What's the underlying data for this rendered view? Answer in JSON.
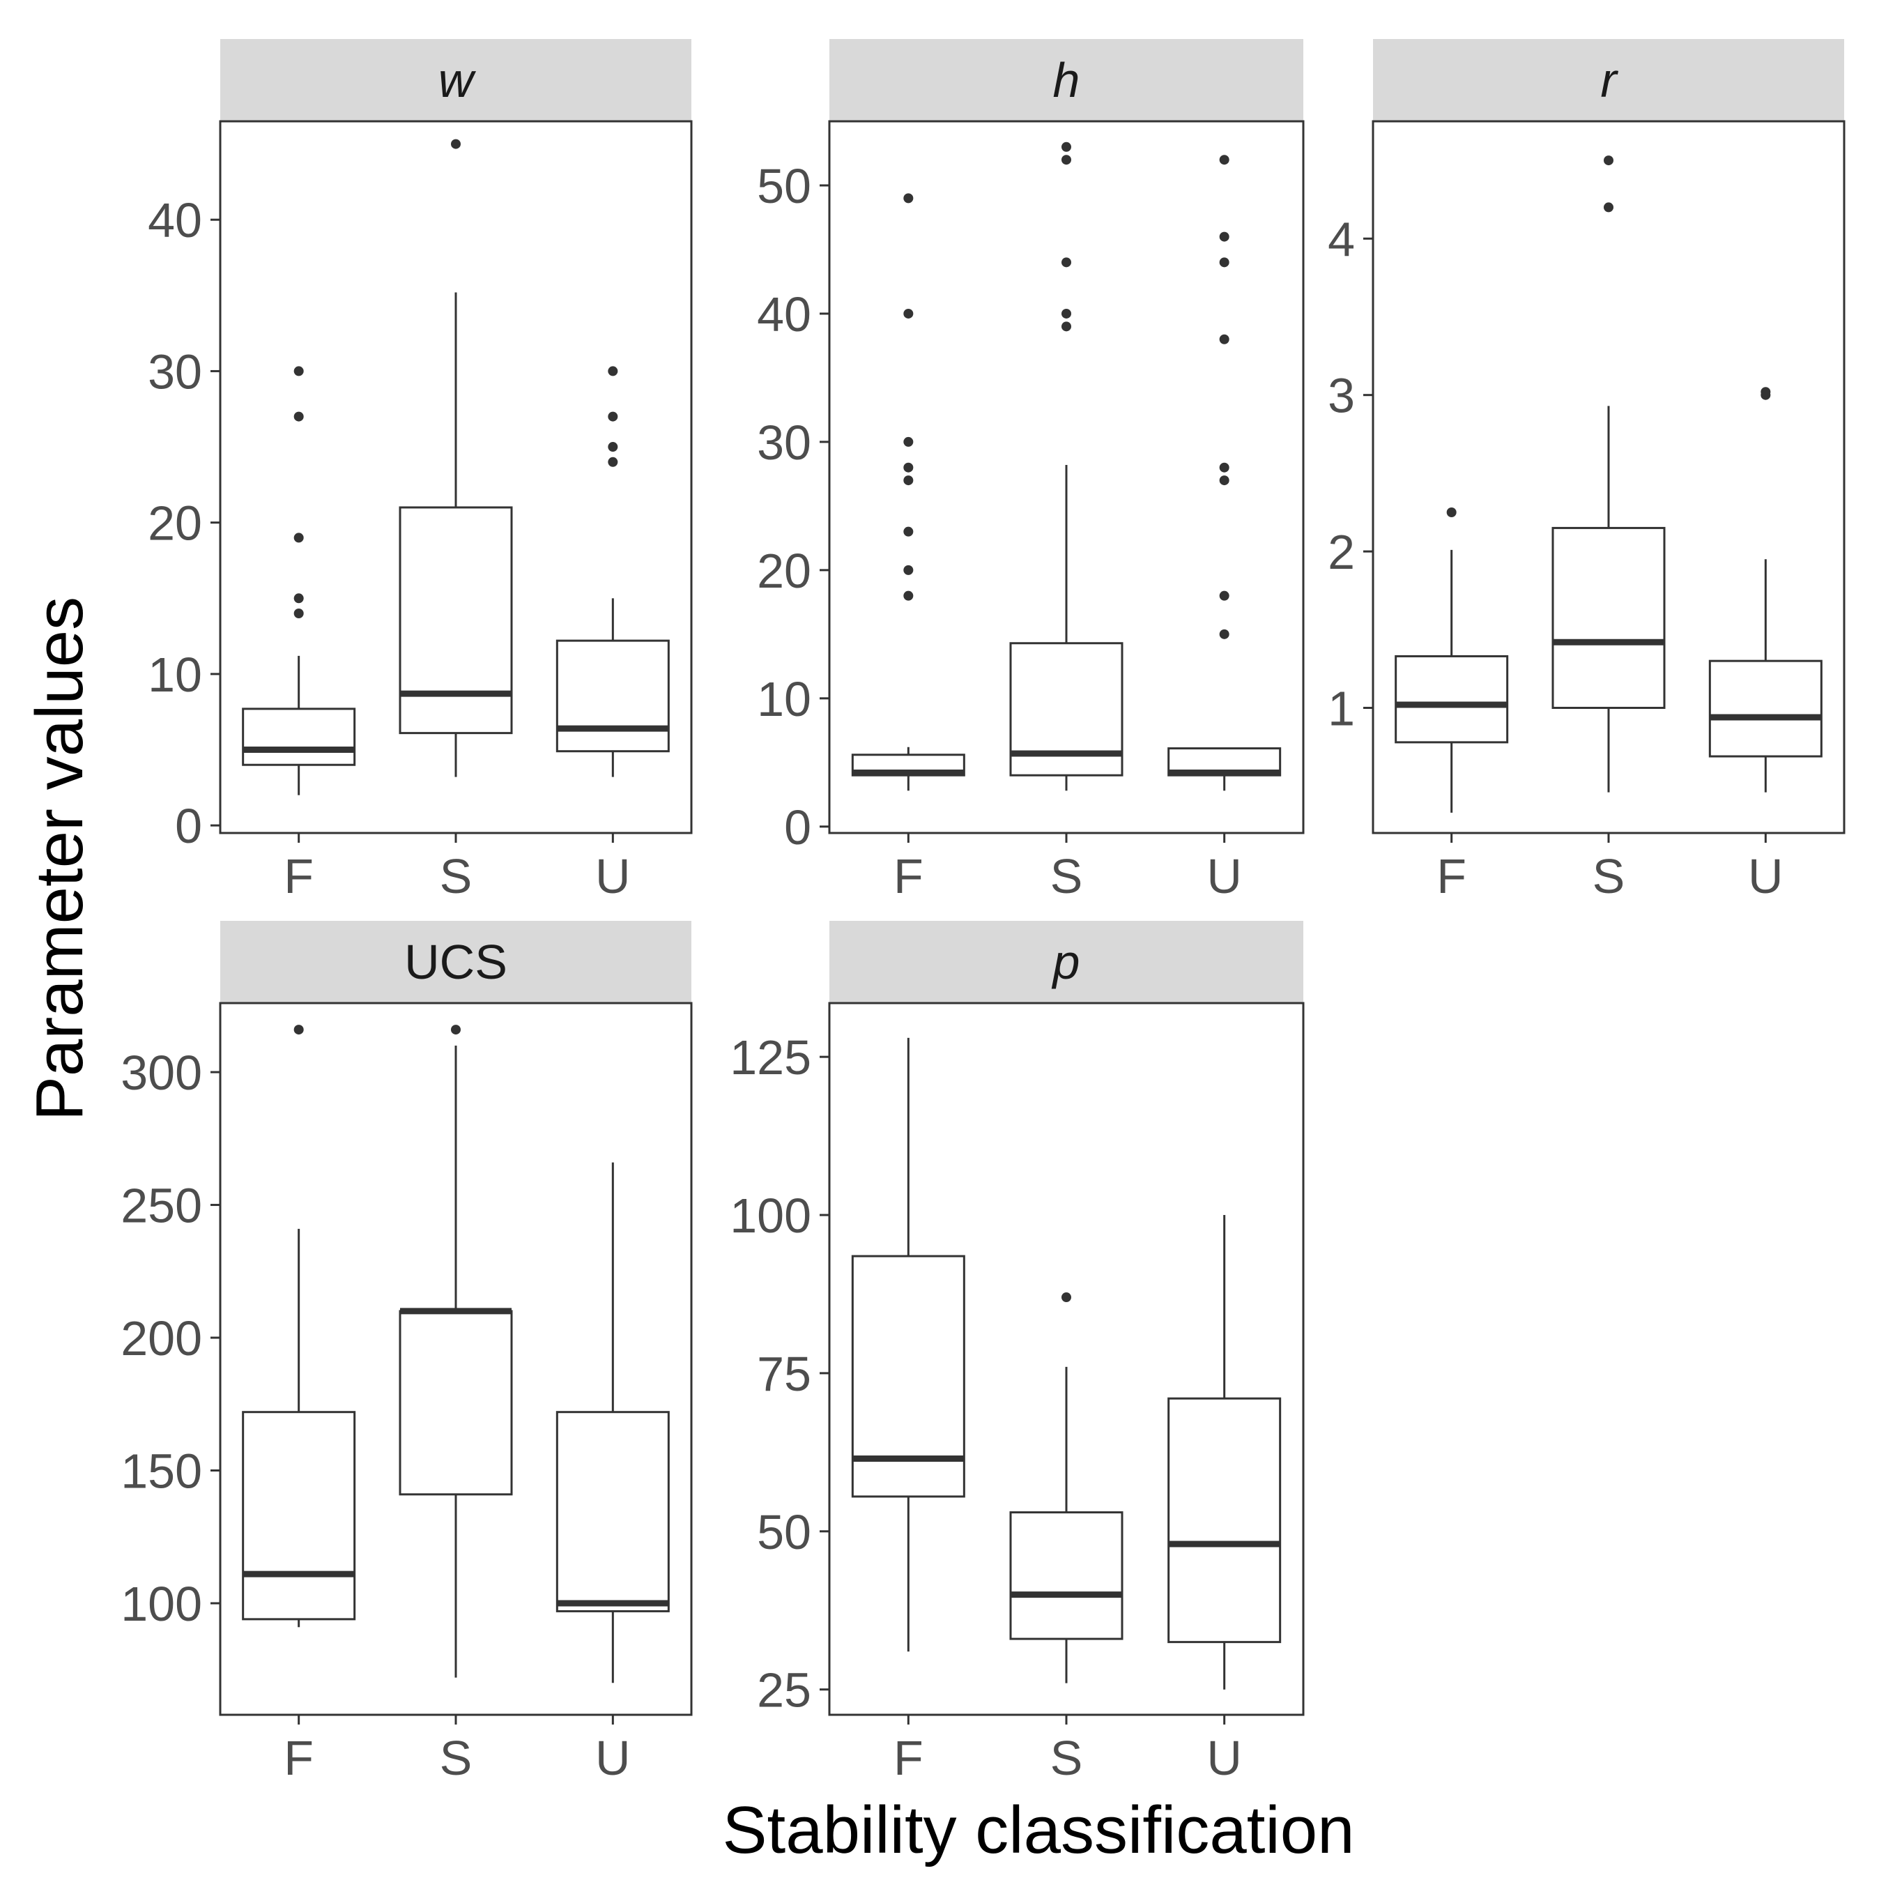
{
  "chart_data": {
    "type": "boxplot",
    "xlabel": "Stability classification",
    "ylabel": "Parameter values",
    "categories": [
      "F",
      "S",
      "U"
    ],
    "panels": [
      {
        "title": "w",
        "italic": true,
        "ylim": [
          -0.5,
          46.5
        ],
        "yticks": [
          0,
          10,
          20,
          30,
          40
        ],
        "boxes": [
          {
            "cat": "F",
            "min": 2,
            "q1": 4,
            "median": 5,
            "q3": 7.7,
            "max": 11.2,
            "outliers": [
              14,
              15,
              19,
              27,
              30
            ]
          },
          {
            "cat": "S",
            "min": 3.2,
            "q1": 6.1,
            "median": 8.7,
            "q3": 21,
            "max": 35.2,
            "outliers": [
              45
            ]
          },
          {
            "cat": "U",
            "min": 3.2,
            "q1": 4.9,
            "median": 6.4,
            "q3": 12.2,
            "max": 15,
            "outliers": [
              24,
              25,
              27,
              30
            ]
          }
        ]
      },
      {
        "title": "h",
        "italic": true,
        "ylim": [
          -0.5,
          55
        ],
        "yticks": [
          0,
          10,
          20,
          30,
          40,
          50
        ],
        "boxes": [
          {
            "cat": "F",
            "min": 2.8,
            "q1": 4,
            "median": 4.2,
            "q3": 5.6,
            "max": 6.2,
            "outliers": [
              18,
              20,
              23,
              27,
              28,
              30,
              40,
              49
            ]
          },
          {
            "cat": "S",
            "min": 2.8,
            "q1": 4,
            "median": 5.7,
            "q3": 14.3,
            "max": 28.2,
            "outliers": [
              39,
              40,
              44,
              52,
              53
            ]
          },
          {
            "cat": "U",
            "min": 2.8,
            "q1": 4,
            "median": 4.2,
            "q3": 6.1,
            "max": 6.1,
            "outliers": [
              15,
              18,
              27,
              28,
              38,
              44,
              46,
              52
            ]
          }
        ]
      },
      {
        "title": "r",
        "italic": true,
        "ylim": [
          0.2,
          4.75
        ],
        "yticks": [
          1,
          2,
          3,
          4
        ],
        "boxes": [
          {
            "cat": "F",
            "min": 0.33,
            "q1": 0.78,
            "median": 1.02,
            "q3": 1.33,
            "max": 2.01,
            "outliers": [
              2.25
            ]
          },
          {
            "cat": "S",
            "min": 0.46,
            "q1": 1,
            "median": 1.42,
            "q3": 2.15,
            "max": 2.93,
            "outliers": [
              4.2,
              4.5
            ]
          },
          {
            "cat": "U",
            "min": 0.46,
            "q1": 0.69,
            "median": 0.94,
            "q3": 1.3,
            "max": 1.95,
            "outliers": [
              3,
              3.02
            ]
          }
        ]
      },
      {
        "title": "UCS",
        "italic": false,
        "ylim": [
          58,
          326
        ],
        "yticks": [
          100,
          150,
          200,
          250,
          300
        ],
        "boxes": [
          {
            "cat": "F",
            "min": 91,
            "q1": 94,
            "median": 111,
            "q3": 172,
            "max": 241,
            "outliers": [
              316
            ]
          },
          {
            "cat": "S",
            "min": 72,
            "q1": 141,
            "median": 210,
            "q3": 210,
            "max": 310,
            "outliers": [
              316
            ]
          },
          {
            "cat": "U",
            "min": 70,
            "q1": 97,
            "median": 100,
            "q3": 172,
            "max": 266,
            "outliers": []
          }
        ]
      },
      {
        "title": "p",
        "italic": true,
        "ylim": [
          21,
          133.5
        ],
        "yticks": [
          25,
          50,
          75,
          100,
          125
        ],
        "boxes": [
          {
            "cat": "F",
            "min": 31,
            "q1": 55.5,
            "median": 61.5,
            "q3": 93.5,
            "max": 128,
            "outliers": []
          },
          {
            "cat": "S",
            "min": 26,
            "q1": 33,
            "median": 40,
            "q3": 53,
            "max": 76,
            "outliers": [
              87
            ]
          },
          {
            "cat": "U",
            "min": 25,
            "q1": 32.5,
            "median": 48,
            "q3": 71,
            "max": 100,
            "outliers": []
          }
        ]
      }
    ]
  }
}
